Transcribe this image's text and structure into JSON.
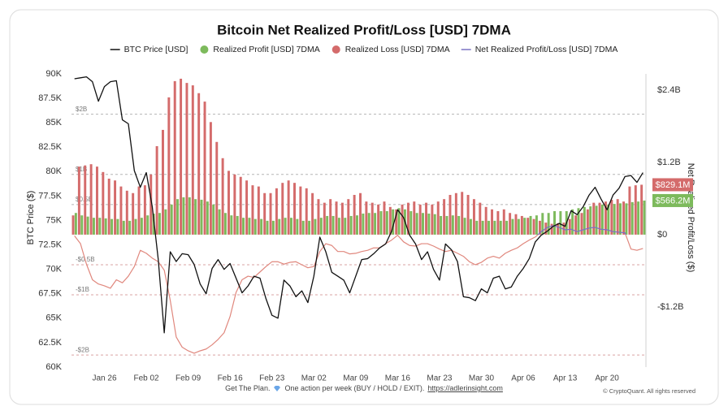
{
  "chart_data": {
    "type": "combo",
    "title": "Bitcoin Net Realized Profit/Loss [USD] 7DMA",
    "y_label": "BTC Price ($)",
    "y2_label": "Net Realized Profit/Loss ($)",
    "legend": "top",
    "grid": false,
    "categories": [
      null,
      null,
      null,
      null,
      null,
      "Jan 26",
      null,
      null,
      null,
      null,
      null,
      null,
      "Feb 02",
      null,
      null,
      null,
      null,
      null,
      null,
      "Feb 09",
      null,
      null,
      null,
      null,
      null,
      null,
      "Feb 16",
      null,
      null,
      null,
      null,
      null,
      null,
      "Feb 23",
      null,
      null,
      null,
      null,
      null,
      null,
      "Mar 02",
      null,
      null,
      null,
      null,
      null,
      null,
      "Mar 09",
      null,
      null,
      null,
      null,
      null,
      null,
      "Mar 16",
      null,
      null,
      null,
      null,
      null,
      null,
      "Mar 23",
      null,
      null,
      null,
      null,
      null,
      null,
      "Mar 30",
      null,
      null,
      null,
      null,
      null,
      null,
      "Apr 06",
      null,
      null,
      null,
      null,
      null,
      null,
      "Apr 13",
      null,
      null,
      null,
      null,
      null,
      null,
      "Apr 20",
      null,
      null,
      null,
      null,
      null,
      null
    ],
    "ylim": [
      60000,
      90000
    ],
    "yticks": [
      {
        "value": 60000,
        "label": "60K"
      },
      {
        "value": 62500,
        "label": "62.5K"
      },
      {
        "value": 65000,
        "label": "65K"
      },
      {
        "value": 67500,
        "label": "67.5K"
      },
      {
        "value": 70000,
        "label": "70K"
      },
      {
        "value": 72500,
        "label": "72.5K"
      },
      {
        "value": 75000,
        "label": "75K"
      },
      {
        "value": 77500,
        "label": "77.5K"
      },
      {
        "value": 80000,
        "label": "80K"
      },
      {
        "value": 82500,
        "label": "82.5K"
      },
      {
        "value": 85000,
        "label": "85K"
      },
      {
        "value": 87500,
        "label": "87.5K"
      },
      {
        "value": 90000,
        "label": "90K"
      }
    ],
    "y2lim": [
      -2.2,
      2.67
    ],
    "y2ticks": [
      {
        "value": -1.2,
        "label": "-$1.2B"
      },
      {
        "value": 0,
        "label": "$0"
      },
      {
        "value": 1.2,
        "label": "$1.2B"
      },
      {
        "value": 2.4,
        "label": "$2.4B"
      }
    ],
    "reference_lines": {
      "axis": "y2",
      "color": "#b5b5b5",
      "negative_color": "#d9a3a3",
      "lines": [
        {
          "value": 2,
          "label": "$2B"
        },
        {
          "value": 1,
          "label": "$1B"
        },
        {
          "value": 0.5,
          "label": "$0.5B"
        },
        {
          "value": -0.5,
          "label": "-$0.5B"
        },
        {
          "value": -1,
          "label": "-$1B"
        },
        {
          "value": -2,
          "label": "-$2B"
        }
      ]
    },
    "series": [
      {
        "name": "BTC Price [USD]",
        "type": "line",
        "axis": "y",
        "color": "#111111",
        "values": [
          89500,
          89600,
          89700,
          89200,
          87200,
          88700,
          89200,
          89300,
          85300,
          84900,
          80100,
          78400,
          79900,
          76400,
          71000,
          63500,
          71800,
          70800,
          71600,
          71500,
          70500,
          68500,
          67500,
          70100,
          71000,
          70000,
          70600,
          69100,
          67600,
          68300,
          69300,
          69100,
          67000,
          65300,
          65000,
          68900,
          68300,
          67200,
          67800,
          66600,
          69300,
          73300,
          71800,
          69700,
          69300,
          68900,
          67600,
          69300,
          71000,
          71100,
          71600,
          72200,
          72600,
          73900,
          76100,
          75300,
          73500,
          72600,
          71000,
          71800,
          70000,
          68900,
          72600,
          72000,
          70800,
          67200,
          67100,
          66800,
          68000,
          67600,
          69100,
          69300,
          68000,
          68200,
          69300,
          70100,
          71100,
          72800,
          73500,
          73900,
          74400,
          74700,
          74400,
          76000,
          75600,
          76400,
          77600,
          78400,
          77200,
          76100,
          77600,
          78300,
          79500,
          79600,
          78900,
          79900
        ]
      },
      {
        "name": "Realized Profit [USD] 7DMA",
        "type": "bar",
        "axis": "y2",
        "color": "#7dba5c",
        "last_value_label": "$566.2M",
        "values": [
          0.36,
          0.32,
          0.3,
          0.28,
          0.28,
          0.27,
          0.26,
          0.26,
          0.23,
          0.23,
          0.26,
          0.28,
          0.32,
          0.35,
          0.36,
          0.42,
          0.5,
          0.59,
          0.62,
          0.62,
          0.59,
          0.58,
          0.55,
          0.5,
          0.42,
          0.36,
          0.32,
          0.31,
          0.28,
          0.28,
          0.26,
          0.26,
          0.23,
          0.23,
          0.26,
          0.28,
          0.28,
          0.26,
          0.23,
          0.23,
          0.26,
          0.28,
          0.31,
          0.31,
          0.28,
          0.28,
          0.31,
          0.32,
          0.35,
          0.36,
          0.36,
          0.39,
          0.39,
          0.42,
          0.44,
          0.42,
          0.39,
          0.36,
          0.36,
          0.35,
          0.34,
          0.31,
          0.31,
          0.32,
          0.31,
          0.28,
          0.26,
          0.23,
          0.23,
          0.23,
          0.23,
          0.23,
          0.23,
          0.26,
          0.26,
          0.28,
          0.31,
          0.32,
          0.36,
          0.36,
          0.39,
          0.39,
          0.39,
          0.42,
          0.44,
          0.46,
          0.47,
          0.48,
          0.5,
          0.5,
          0.51,
          0.52,
          0.52,
          0.54,
          0.55,
          0.5662
        ]
      },
      {
        "name": "Realized Loss [USD] 7DMA",
        "type": "bar",
        "axis": "y2",
        "color": "#d46b6b",
        "last_value_label": "$829.1M",
        "values": [
          0.32,
          1.13,
          1.15,
          1.17,
          1.13,
          1.04,
          0.93,
          0.9,
          0.8,
          0.73,
          0.69,
          0.8,
          0.82,
          1.0,
          1.47,
          1.74,
          2.28,
          2.55,
          2.59,
          2.52,
          2.48,
          2.35,
          2.21,
          1.87,
          1.54,
          1.27,
          1.06,
          1.0,
          0.96,
          0.9,
          0.82,
          0.8,
          0.69,
          0.69,
          0.77,
          0.86,
          0.9,
          0.86,
          0.8,
          0.77,
          0.69,
          0.59,
          0.53,
          0.59,
          0.55,
          0.53,
          0.59,
          0.66,
          0.69,
          0.55,
          0.53,
          0.5,
          0.55,
          0.46,
          0.42,
          0.5,
          0.53,
          0.55,
          0.5,
          0.53,
          0.5,
          0.55,
          0.59,
          0.66,
          0.69,
          0.71,
          0.66,
          0.59,
          0.53,
          0.46,
          0.42,
          0.39,
          0.42,
          0.36,
          0.34,
          0.31,
          0.28,
          0.26,
          0.23,
          0.2,
          0.18,
          0.19,
          0.2,
          0.26,
          0.32,
          0.36,
          0.42,
          0.53,
          0.53,
          0.55,
          0.58,
          0.59,
          0.55,
          0.8,
          0.82,
          0.8291
        ]
      },
      {
        "name": "Net Realized Profit/Loss [USD] 7DMA",
        "type": "line",
        "axis": "y2",
        "color": "#7b72c4",
        "negative_color": "#e0877d",
        "values": [
          -0.02,
          -0.15,
          -0.49,
          -0.75,
          -0.82,
          -0.85,
          -0.89,
          -0.75,
          -0.8,
          -0.69,
          -0.53,
          -0.26,
          -0.31,
          -0.39,
          -0.45,
          -0.59,
          -1.09,
          -1.7,
          -1.87,
          -1.93,
          -1.97,
          -1.93,
          -1.9,
          -1.83,
          -1.74,
          -1.63,
          -1.36,
          -0.96,
          -0.75,
          -0.69,
          -0.71,
          -0.62,
          -0.53,
          -0.45,
          -0.45,
          -0.49,
          -0.46,
          -0.45,
          -0.5,
          -0.55,
          -0.53,
          -0.28,
          -0.15,
          -0.18,
          -0.28,
          -0.28,
          -0.32,
          -0.31,
          -0.28,
          -0.26,
          -0.22,
          -0.22,
          -0.15,
          -0.09,
          -0.01,
          -0.12,
          -0.18,
          -0.19,
          -0.15,
          -0.15,
          -0.19,
          -0.24,
          -0.28,
          -0.26,
          -0.31,
          -0.36,
          -0.45,
          -0.5,
          -0.46,
          -0.39,
          -0.36,
          -0.39,
          -0.31,
          -0.26,
          -0.22,
          -0.15,
          -0.09,
          -0.04,
          0.05,
          0.12,
          0.15,
          0.12,
          0.08,
          0.09,
          0.05,
          0.08,
          0.11,
          0.12,
          0.09,
          0.08,
          0.05,
          0.04,
          0.03,
          -0.24,
          -0.26,
          -0.23
        ]
      }
    ]
  },
  "footer": {
    "cta": "Get The Plan.",
    "text": "One action per week (BUY / HOLD / EXIT).",
    "link": "https://adlerinsight.com",
    "copyright": "© CryptoQuant. All rights reserved"
  }
}
